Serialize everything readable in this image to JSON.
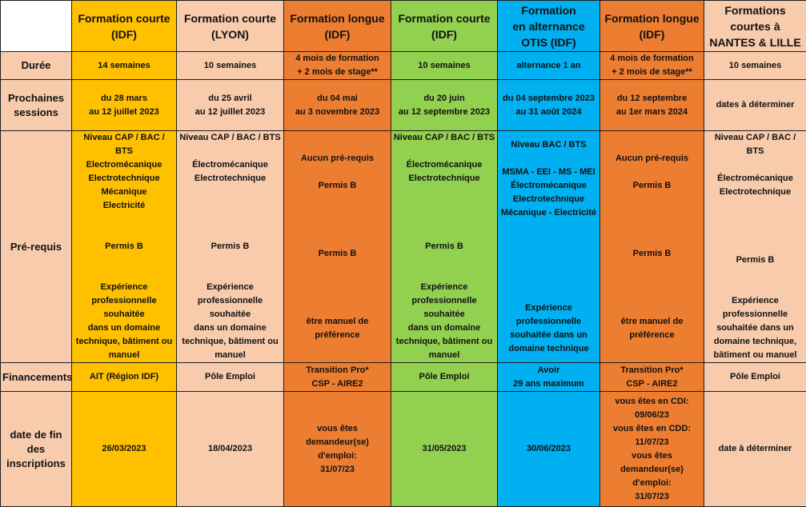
{
  "colors": {
    "yellow": "#ffc000",
    "peach": "#f8cbad",
    "orange": "#ed7d31",
    "green": "#92d050",
    "blue": "#00b0f0"
  },
  "row_labels": {
    "duree": "Durée",
    "sessions": "Prochaines\nsessions",
    "prerequis": "Pré-requis",
    "financements": "Financements",
    "fin_inscriptions": "date de fin\ndes\ninscriptions"
  },
  "columns": [
    {
      "color": "#ffc000",
      "header": "Formation courte\n(IDF)",
      "duree": "14 semaines",
      "sessions": "du 28 mars\nau 12 juillet 2023",
      "prerequis": "Niveau CAP / BAC /\nBTS\nElectromécanique\nElectrotechnique\nMécanique\nElectricité\n\n\nPermis B\n\n\nExpérience\nprofessionnelle souhaitée\ndans un domaine\ntechnique, bâtiment ou\nmanuel",
      "financements": "AIT (Région IDF)",
      "fin_inscriptions": "26/03/2023"
    },
    {
      "color": "#f8cbad",
      "header": "Formation courte\n(LYON)",
      "duree": "10 semaines",
      "sessions": "du 25 avril\nau 12 juillet 2023",
      "prerequis": "Niveau CAP / BAC / BTS\n\nÉlectromécanique\nElectrotechnique\n\n\n\n\nPermis B\n\n\nExpérience\nprofessionnelle souhaitée\ndans un domaine\ntechnique, bâtiment ou\nmanuel",
      "financements": "Pôle Emploi",
      "fin_inscriptions": "18/04/2023"
    },
    {
      "color": "#ed7d31",
      "header": "Formation longue\n(IDF)",
      "duree": "4 mois de formation\n+ 2 mois de stage**",
      "sessions": "du 04 mai\nau 3 novembre 2023",
      "prerequis": "Aucun pré-requis\n\nPermis B\n\n\n\n\nPermis B\n\n\n\n\nêtre manuel de\npréférence",
      "financements": "Transition Pro*\nCSP - AIRE2",
      "fin_inscriptions": "vous êtes demandeur(se)\nd'emploi:\n31/07/23"
    },
    {
      "color": "#92d050",
      "header": "Formation courte\n(IDF)",
      "duree": "10 semaines",
      "sessions": "du 20 juin\nau 12 septembre 2023",
      "prerequis": "Niveau CAP / BAC / BTS\n\nÉlectromécanique\nElectrotechnique\n\n\n\n\nPermis B\n\n\nExpérience\nprofessionnelle souhaitée\ndans un domaine\ntechnique, bâtiment ou\nmanuel",
      "financements": "Pôle Emploi",
      "fin_inscriptions": "31/05/2023"
    },
    {
      "color": "#00b0f0",
      "header": "Formation\nen alternance\nOTIS (IDF)",
      "duree": "alternance 1 an",
      "sessions": "du 04 septembre 2023\nau 31 août 2024",
      "prerequis": "Niveau BAC / BTS\n\nMSMA - EEI - MS - MEI\nÉlectromécanique\nElectrotechnique\nMécanique -  Electricité\n\n\n\n\n\n\nExpérience\nprofessionnelle\nsouhaitée dans un\ndomaine technique",
      "financements": "Avoir\n29 ans maximum",
      "fin_inscriptions": "30/06/2023"
    },
    {
      "color": "#ed7d31",
      "header": "Formation longue\n(IDF)",
      "duree": "4 mois de formation\n+ 2 mois de stage**",
      "sessions": "du 12 septembre\nau 1er mars 2024",
      "prerequis": "Aucun pré-requis\n\nPermis B\n\n\n\n\nPermis B\n\n\n\n\nêtre manuel de\npréférence",
      "financements": "Transition Pro*\nCSP - AIRE2",
      "fin_inscriptions": "vous êtes en CDI:\n09/06/23\nvous êtes en CDD:\n11/07/23\nvous êtes\ndemandeur(se)\nd'emploi:\n31/07/23"
    },
    {
      "color": "#f8cbad",
      "header": "Formations\ncourtes    à\nNANTES & LILLE",
      "duree": "10 semaines",
      "sessions": "dates à déterminer",
      "prerequis": "Niveau CAP / BAC / BTS\n\nÉlectromécanique\nElectrotechnique\n\n\n\n\nPermis B\n\n\nExpérience\nprofessionnelle\nsouhaitée dans un\ndomaine technique,\nbâtiment ou manuel",
      "financements": "Pôle Emploi",
      "fin_inscriptions": "date à déterminer"
    }
  ]
}
